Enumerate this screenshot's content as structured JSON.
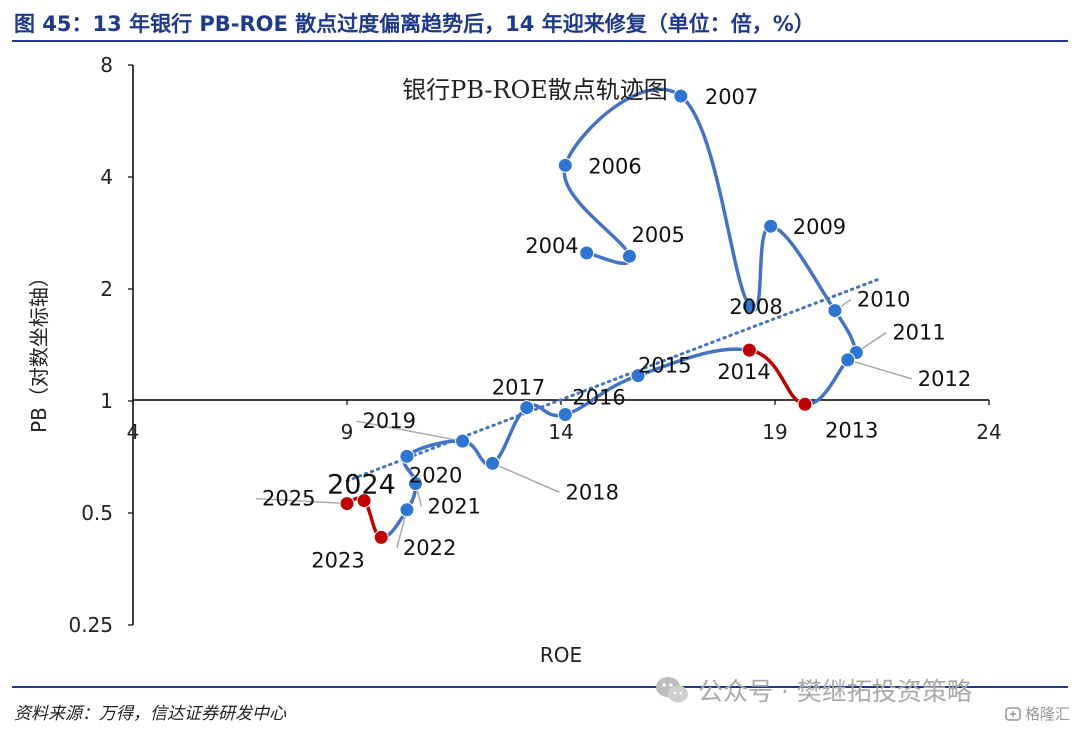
{
  "header": {
    "title": "图 45：13 年银行 PB-ROE 散点过度偏离趋势后，14 年迎来修复（单位：倍，%）"
  },
  "footer": {
    "source": "资料来源：万得，信达证券研发中心",
    "watermark": "公众号 · 樊继拓投资策略",
    "brand": "格隆汇"
  },
  "colors": {
    "title_blue": "#1f3a8a",
    "series_blue": "#4472c4",
    "marker_blue": "#2e75d1",
    "highlight_red": "#c00000",
    "trend_dotted": "#4472c4",
    "axis": "#000000"
  },
  "chart_data": {
    "type": "scatter",
    "title": "银行PB-ROE散点轨迹图",
    "xlabel": "ROE",
    "ylabel": "PB（对数坐标轴）",
    "xlim": [
      4,
      24
    ],
    "ylim": [
      0.25,
      8
    ],
    "yscale": "log2",
    "x_ticks": [
      "4",
      "9",
      "14",
      "19",
      "24"
    ],
    "y_ticks": [
      "0.25",
      "0.5",
      "1",
      "2",
      "4",
      "8"
    ],
    "grid": false,
    "legend": "none",
    "points": [
      {
        "label": "2004",
        "x": 14.6,
        "y": 2.5
      },
      {
        "label": "2005",
        "x": 15.6,
        "y": 2.45
      },
      {
        "label": "2006",
        "x": 14.1,
        "y": 4.3
      },
      {
        "label": "2007",
        "x": 16.8,
        "y": 6.6
      },
      {
        "label": "2008",
        "x": 18.4,
        "y": 1.8
      },
      {
        "label": "2009",
        "x": 18.9,
        "y": 2.95
      },
      {
        "label": "2010",
        "x": 20.4,
        "y": 1.75
      },
      {
        "label": "2011",
        "x": 20.9,
        "y": 1.35
      },
      {
        "label": "2012",
        "x": 20.7,
        "y": 1.29
      },
      {
        "label": "2013",
        "x": 19.7,
        "y": 0.98
      },
      {
        "label": "2014",
        "x": 18.4,
        "y": 1.37
      },
      {
        "label": "2015",
        "x": 15.8,
        "y": 1.17
      },
      {
        "label": "2016",
        "x": 14.1,
        "y": 0.92
      },
      {
        "label": "2017",
        "x": 13.2,
        "y": 0.96
      },
      {
        "label": "2018",
        "x": 12.4,
        "y": 0.68
      },
      {
        "label": "2019",
        "x": 11.7,
        "y": 0.78
      },
      {
        "label": "2020",
        "x": 10.4,
        "y": 0.71
      },
      {
        "label": "2021",
        "x": 10.6,
        "y": 0.6
      },
      {
        "label": "2022",
        "x": 10.4,
        "y": 0.51
      },
      {
        "label": "2023",
        "x": 9.8,
        "y": 0.43
      },
      {
        "label": "2024",
        "x": 9.4,
        "y": 0.54
      },
      {
        "label": "2025",
        "x": 9.0,
        "y": 0.53
      }
    ],
    "red_segments": [
      [
        "2013",
        "2014"
      ],
      [
        "2023",
        "2024"
      ],
      [
        "2024",
        "2025"
      ]
    ],
    "red_points": [
      "2013",
      "2014",
      "2023",
      "2024",
      "2025"
    ],
    "trendline": {
      "style": "dotted",
      "from": {
        "x": 9.0,
        "y": 0.61
      },
      "to": {
        "x": 21.4,
        "y": 2.12
      }
    }
  }
}
